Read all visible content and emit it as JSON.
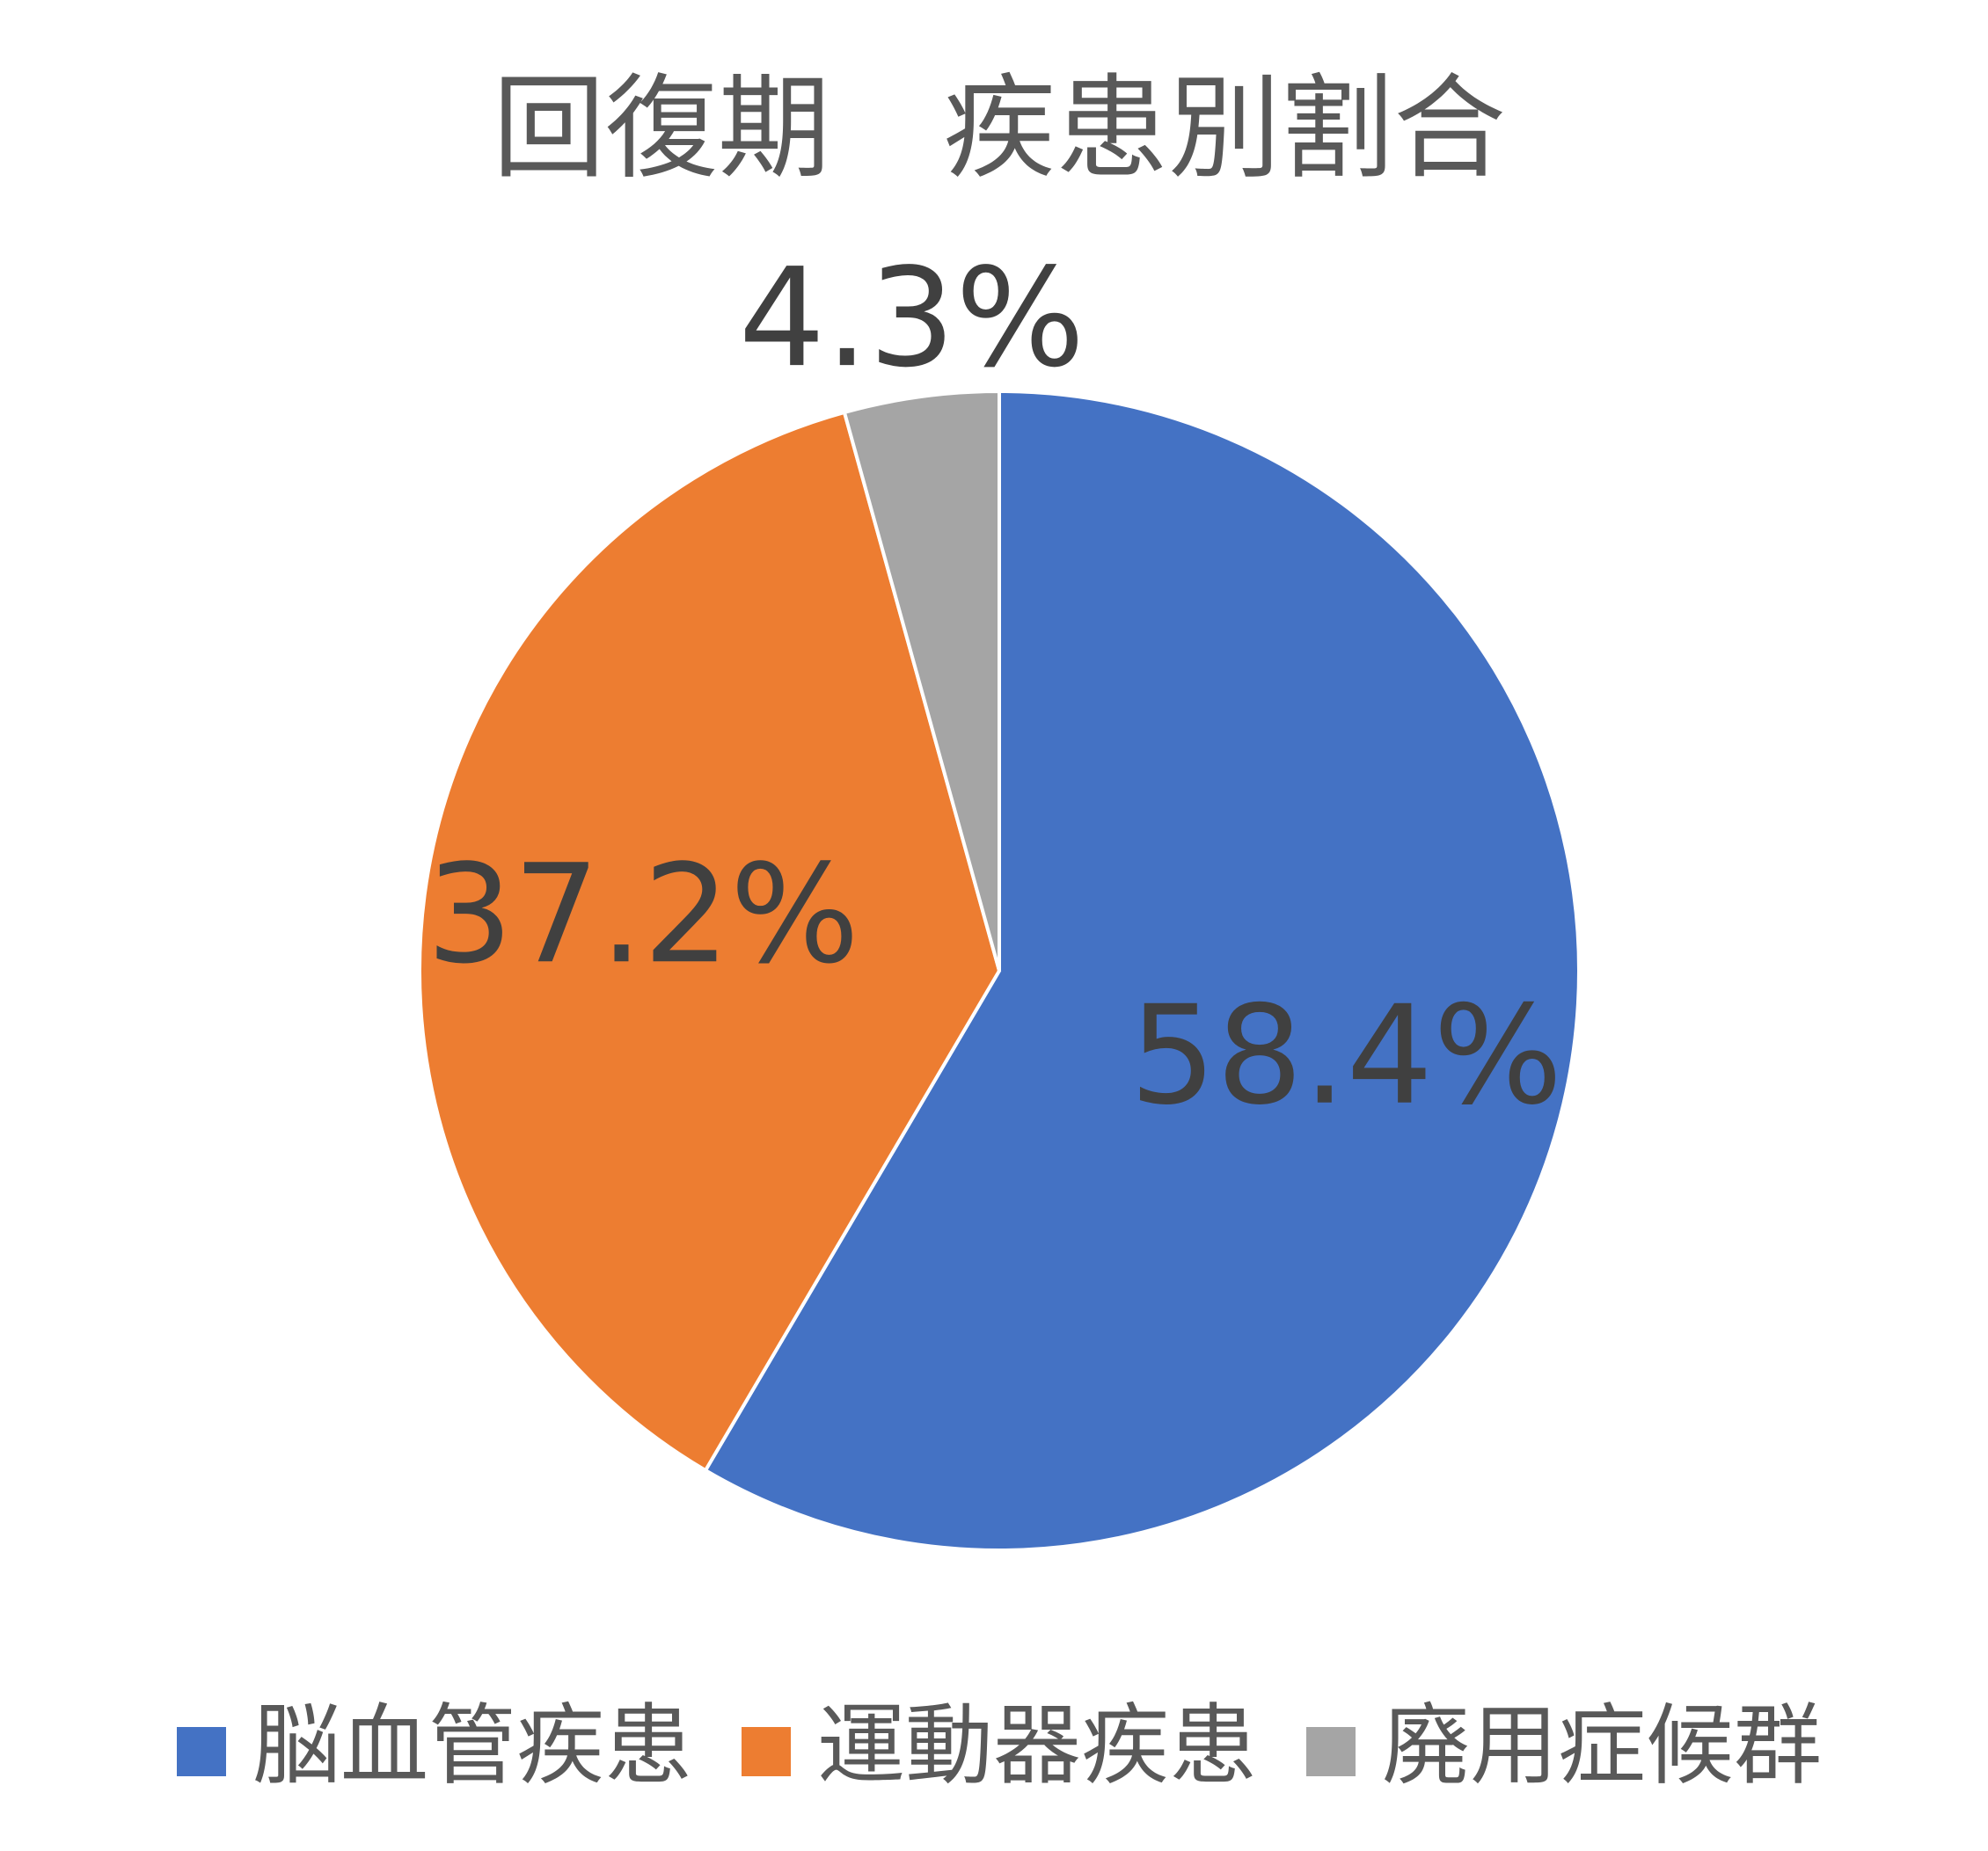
{
  "chart_data": {
    "type": "pie",
    "title": "回復期　疾患別割合",
    "categories": [
      "脳血管疾患",
      "運動器疾患",
      "廃用症候群"
    ],
    "values": [
      58.4,
      37.2,
      4.3
    ],
    "value_labels": [
      "58.4%",
      "37.2%",
      "4.3%"
    ],
    "colors": [
      "#4472c4",
      "#ed7d31",
      "#a5a5a5"
    ],
    "legend": "bottom"
  }
}
